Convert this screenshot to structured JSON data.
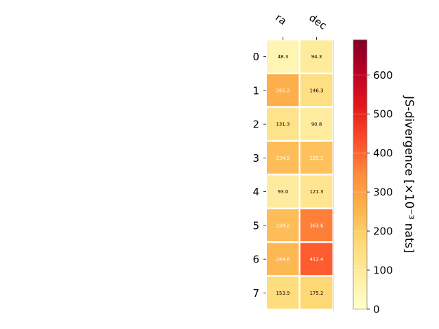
{
  "chart_data": {
    "type": "heatmap",
    "columns": [
      "ra",
      "dec"
    ],
    "rows": [
      "0",
      "1",
      "2",
      "3",
      "4",
      "5",
      "6",
      "7"
    ],
    "values": [
      [
        48.3,
        94.3
      ],
      [
        265.2,
        146.3
      ],
      [
        131.3,
        90.8
      ],
      [
        234.9,
        225.2
      ],
      [
        93.0,
        121.3
      ],
      [
        234.2,
        363.6
      ],
      [
        244.6,
        412.4
      ],
      [
        153.9,
        175.2
      ]
    ],
    "value_labels": [
      [
        "48.3",
        "94.3"
      ],
      [
        "265.2",
        "146.3"
      ],
      [
        "131.3",
        "90.8"
      ],
      [
        "234.9",
        "225.2"
      ],
      [
        "93.0",
        "121.3"
      ],
      [
        "234.2",
        "363.6"
      ],
      [
        "244.6",
        "412.4"
      ],
      [
        "153.9",
        "175.2"
      ]
    ],
    "colorbar": {
      "label": "JS-divergence [×10⁻³ nats]",
      "range": [
        0,
        690
      ],
      "ticks": [
        0,
        100,
        200,
        300,
        400,
        500,
        600
      ],
      "colormap": "YlOrRd",
      "colors": [
        "#ffffcc",
        "#ffeda0",
        "#fed976",
        "#feb24c",
        "#fd8d3c",
        "#fc4e2a",
        "#e31a1c",
        "#bd0026",
        "#800026"
      ]
    }
  }
}
